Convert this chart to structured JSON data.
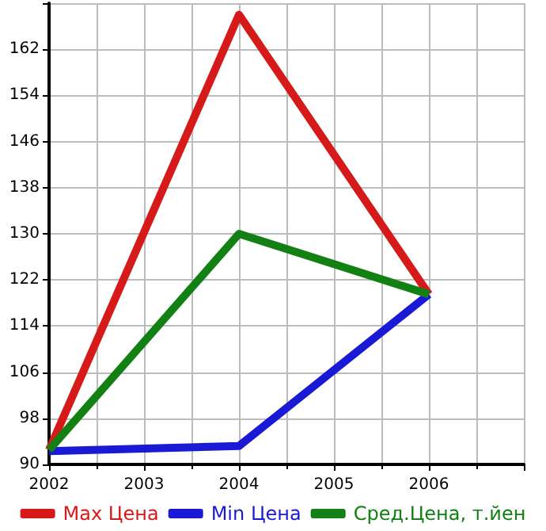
{
  "chart_data": {
    "type": "line",
    "x": [
      2002,
      2004,
      2006
    ],
    "series": [
      {
        "name": "Max Цена",
        "color": "#d61a1a",
        "values": [
          92.5,
          168,
          119.5
        ]
      },
      {
        "name": "Min Цена",
        "color": "#1a1ad6",
        "values": [
          92.3,
          93.2,
          119.5
        ]
      },
      {
        "name": "Сред.Цена, т.йен",
        "color": "#128012",
        "values": [
          92.5,
          130,
          119.5
        ]
      }
    ],
    "xlim": [
      2002,
      2007
    ],
    "xticks": [
      2002,
      2003,
      2004,
      2005,
      2006,
      {
        "value": 2007,
        "label": null
      }
    ],
    "ylim": [
      90,
      170
    ],
    "yticks": [
      90,
      98,
      106,
      114,
      122,
      130,
      138,
      146,
      154,
      162,
      {
        "value": 170,
        "label": null
      }
    ],
    "grid": true,
    "legend": "bottom",
    "marker": "none",
    "line_style": "solid"
  }
}
